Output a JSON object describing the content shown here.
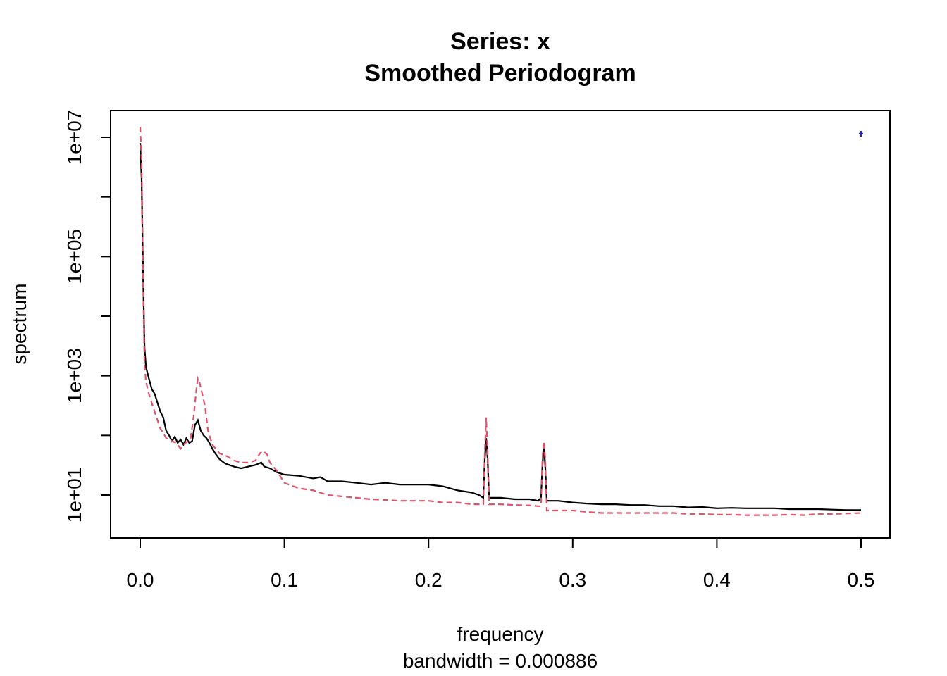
{
  "chart_data": {
    "type": "line",
    "title": "Series: x",
    "subtitle": "Smoothed Periodogram",
    "xlabel": "frequency",
    "xsublabel": "bandwidth = 0.000886",
    "ylabel": "spectrum",
    "xlim": [
      0.0,
      0.5
    ],
    "ylim": [
      2.3,
      15000000
    ],
    "y_scale": "log",
    "grid": false,
    "x_ticks": [
      "0.0",
      "0.1",
      "0.2",
      "0.3",
      "0.4",
      "0.5"
    ],
    "y_tick_labels": [
      "1e+01",
      "1e+03",
      "1e+05",
      "1e+07"
    ],
    "y_tick_values": [
      10,
      1000,
      100000,
      10000000
    ],
    "y_minor_ticks": [
      100,
      10000,
      1000000
    ],
    "series": [
      {
        "style": "solid",
        "color": "#000000",
        "x": [
          0.0,
          0.001,
          0.002,
          0.003,
          0.004,
          0.006,
          0.008,
          0.01,
          0.012,
          0.014,
          0.016,
          0.018,
          0.02,
          0.022,
          0.024,
          0.026,
          0.028,
          0.03,
          0.032,
          0.034,
          0.036,
          0.038,
          0.04,
          0.042,
          0.044,
          0.046,
          0.048,
          0.05,
          0.052,
          0.055,
          0.058,
          0.06,
          0.065,
          0.07,
          0.075,
          0.08,
          0.084,
          0.086,
          0.09,
          0.095,
          0.1,
          0.11,
          0.12,
          0.125,
          0.13,
          0.14,
          0.15,
          0.16,
          0.17,
          0.18,
          0.19,
          0.2,
          0.21,
          0.22,
          0.23,
          0.235,
          0.238,
          0.239,
          0.24,
          0.241,
          0.242,
          0.245,
          0.25,
          0.26,
          0.27,
          0.276,
          0.278,
          0.279,
          0.28,
          0.281,
          0.282,
          0.285,
          0.29,
          0.3,
          0.31,
          0.32,
          0.33,
          0.34,
          0.35,
          0.36,
          0.37,
          0.38,
          0.39,
          0.4,
          0.41,
          0.42,
          0.43,
          0.44,
          0.45,
          0.46,
          0.47,
          0.48,
          0.49,
          0.5
        ],
        "values": [
          8000000,
          2000000,
          50000,
          3000,
          1400,
          900,
          600,
          500,
          350,
          250,
          200,
          120,
          100,
          80,
          95,
          75,
          85,
          70,
          90,
          75,
          80,
          150,
          180,
          120,
          100,
          90,
          75,
          60,
          50,
          40,
          35,
          33,
          30,
          28,
          30,
          32,
          35,
          30,
          28,
          24,
          22,
          21,
          19,
          20,
          17,
          17,
          16,
          15,
          16,
          15,
          15,
          15,
          14,
          12,
          11,
          10,
          9,
          40,
          90,
          40,
          9,
          9,
          9,
          8.5,
          8.5,
          8,
          9,
          30,
          70,
          30,
          8,
          8,
          8,
          7.5,
          7.2,
          7,
          7,
          6.8,
          6.8,
          6.5,
          6.5,
          6.2,
          6.3,
          6.0,
          6.1,
          6.0,
          6.0,
          6.0,
          5.8,
          5.8,
          5.8,
          5.7,
          5.6,
          5.6
        ]
      },
      {
        "style": "dashed",
        "color": "#DF536B",
        "x": [
          0.0,
          0.001,
          0.002,
          0.003,
          0.004,
          0.006,
          0.008,
          0.01,
          0.012,
          0.014,
          0.016,
          0.018,
          0.02,
          0.022,
          0.025,
          0.028,
          0.03,
          0.033,
          0.035,
          0.037,
          0.039,
          0.04,
          0.041,
          0.043,
          0.045,
          0.047,
          0.05,
          0.055,
          0.06,
          0.065,
          0.07,
          0.075,
          0.08,
          0.083,
          0.085,
          0.088,
          0.09,
          0.095,
          0.1,
          0.11,
          0.12,
          0.13,
          0.14,
          0.15,
          0.16,
          0.17,
          0.18,
          0.19,
          0.2,
          0.21,
          0.22,
          0.23,
          0.235,
          0.238,
          0.239,
          0.24,
          0.241,
          0.242,
          0.245,
          0.25,
          0.26,
          0.27,
          0.276,
          0.278,
          0.279,
          0.28,
          0.281,
          0.282,
          0.285,
          0.29,
          0.3,
          0.31,
          0.32,
          0.33,
          0.34,
          0.35,
          0.36,
          0.37,
          0.38,
          0.39,
          0.4,
          0.41,
          0.42,
          0.43,
          0.44,
          0.45,
          0.46,
          0.47,
          0.48,
          0.49,
          0.5
        ],
        "values": [
          15000000,
          4000000,
          40000,
          1500,
          800,
          500,
          350,
          250,
          180,
          130,
          110,
          90,
          85,
          80,
          75,
          60,
          70,
          80,
          90,
          200,
          600,
          900,
          800,
          500,
          300,
          120,
          70,
          50,
          45,
          38,
          35,
          35,
          38,
          50,
          55,
          48,
          35,
          25,
          16,
          13,
          12,
          10,
          9.5,
          9,
          8.5,
          8.3,
          8,
          8,
          8,
          7.5,
          7.5,
          7,
          7,
          7,
          50,
          200,
          50,
          7,
          7,
          7,
          6.8,
          6.7,
          6.5,
          6.5,
          40,
          80,
          40,
          5.5,
          5.5,
          5.5,
          5.5,
          5.2,
          5.0,
          5.0,
          5.0,
          5.0,
          5.0,
          5.0,
          4.8,
          4.8,
          4.7,
          4.7,
          4.6,
          4.6,
          4.6,
          4.7,
          4.6,
          4.8,
          4.8,
          4.9,
          5.0
        ]
      }
    ],
    "ci_bar": {
      "x": 0.5,
      "y_low": 10200000,
      "y_high": 12800000,
      "y_center": 11500000,
      "color": "#2222ee"
    }
  }
}
